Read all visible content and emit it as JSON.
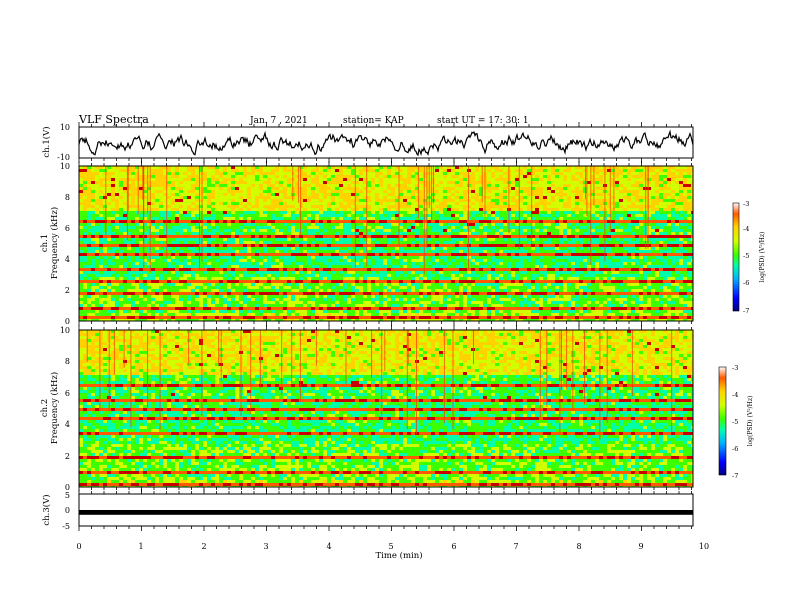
{
  "header": {
    "title": "VLF Spectra",
    "date": "Jan. 7 , 2021",
    "station": "station= KAP",
    "start_ut": "start UT = 17: 30: 1"
  },
  "chart_data": [
    {
      "type": "line",
      "name": "ch1-waveform",
      "ylabel": "ch.1(V)",
      "ylim": [
        -10,
        10
      ],
      "yticks": [
        "10",
        "-10"
      ],
      "xlim": [
        0,
        10
      ]
    },
    {
      "type": "heatmap",
      "name": "ch1-spectrogram",
      "ylabel": "Frequency (kHz)",
      "channel_label": "ch.1",
      "ylim": [
        0,
        10
      ],
      "yticks": [
        "0",
        "2",
        "4",
        "6",
        "8",
        "10"
      ],
      "xlim": [
        0,
        10
      ],
      "colorbar": {
        "label": "log(PSD) (V²/Hz)",
        "ticks": [
          "-3",
          "-4",
          "-5",
          "-6",
          "-7"
        ],
        "range": [
          -7,
          -3
        ]
      },
      "bands_khz": [
        6.5,
        5.5,
        5.0,
        4.3,
        3.5,
        2.6,
        1.8,
        0.9,
        0.3
      ]
    },
    {
      "type": "heatmap",
      "name": "ch2-spectrogram",
      "ylabel": "Frequency (kHz)",
      "channel_label": "ch.2",
      "ylim": [
        0,
        10
      ],
      "yticks": [
        "0",
        "2",
        "4",
        "6",
        "8",
        "10"
      ],
      "xlim": [
        0,
        10
      ],
      "colorbar": {
        "label": "log(PSD) (V²/Hz)",
        "ticks": [
          "-3",
          "-4",
          "-5",
          "-6",
          "-7"
        ],
        "range": [
          -7,
          -3
        ]
      },
      "bands_khz": [
        6.5,
        5.6,
        5.0,
        4.5,
        3.5,
        2.0,
        1.0,
        0.3
      ]
    },
    {
      "type": "line",
      "name": "ch3-waveform",
      "ylabel": "ch.3(V)",
      "ylim": [
        -5,
        5
      ],
      "yticks": [
        "5",
        "0",
        "-5"
      ],
      "xlim": [
        0,
        10
      ],
      "trace_level_v": [
        -1.5,
        0
      ]
    }
  ],
  "x_axis": {
    "label": "Time (min)",
    "ticks": [
      "0",
      "1",
      "2",
      "3",
      "4",
      "5",
      "6",
      "7",
      "8",
      "9",
      "10"
    ]
  },
  "colors": {
    "jet": [
      "#00007f",
      "#0000ff",
      "#00b4ff",
      "#00ffaa",
      "#3cff00",
      "#d2ff00",
      "#ffd200",
      "#ff5a00",
      "#c80000"
    ]
  }
}
